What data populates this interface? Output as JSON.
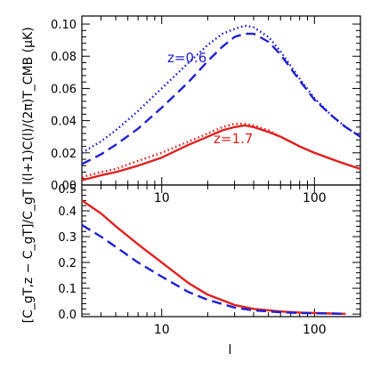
{
  "chart_data": [
    {
      "type": "line",
      "xscale": "log",
      "xlim": [
        3,
        200
      ],
      "ylim": [
        0,
        0.105
      ],
      "ylabel": "l(l+1)C(l)/(2π)T_CMB (μK)",
      "xticks": [
        "10",
        "100"
      ],
      "yticks": [
        "0.00",
        "0.02",
        "0.04",
        "0.06",
        "0.08",
        "0.10"
      ],
      "annotations": [
        {
          "text": "z=0.6",
          "color": "#2020d0"
        },
        {
          "text": "z=1.7",
          "color": "#e02020"
        }
      ],
      "series": [
        {
          "color": "#2020d0",
          "style": "dotted",
          "x": [
            3,
            4,
            5,
            7,
            10,
            15,
            20,
            25,
            30,
            35,
            40,
            50,
            60,
            80,
            100,
            130,
            160,
            200
          ],
          "y": [
            0.02,
            0.027,
            0.034,
            0.046,
            0.06,
            0.076,
            0.087,
            0.094,
            0.097,
            0.099,
            0.098,
            0.092,
            0.083,
            0.066,
            0.054,
            0.043,
            0.036,
            0.03
          ]
        },
        {
          "color": "#2020d0",
          "style": "dashed",
          "x": [
            3,
            4,
            5,
            7,
            10,
            15,
            20,
            25,
            30,
            35,
            40,
            50,
            60,
            80,
            100,
            130,
            160,
            200
          ],
          "y": [
            0.013,
            0.019,
            0.025,
            0.035,
            0.048,
            0.064,
            0.077,
            0.086,
            0.092,
            0.094,
            0.094,
            0.089,
            0.081,
            0.065,
            0.053,
            0.043,
            0.036,
            0.03
          ]
        },
        {
          "color": "#e02020",
          "style": "dotted",
          "x": [
            3,
            4,
            5,
            7,
            10,
            15,
            20,
            25,
            30,
            35,
            40,
            50,
            60,
            80,
            100,
            130,
            160,
            200
          ],
          "y": [
            0.005,
            0.008,
            0.01,
            0.015,
            0.02,
            0.027,
            0.032,
            0.036,
            0.038,
            0.038,
            0.037,
            0.034,
            0.03,
            0.024,
            0.02,
            0.016,
            0.013,
            0.01
          ]
        },
        {
          "color": "#e02020",
          "style": "solid",
          "x": [
            3,
            4,
            5,
            7,
            10,
            15,
            20,
            25,
            30,
            35,
            40,
            50,
            60,
            80,
            100,
            130,
            160,
            200
          ],
          "y": [
            0.003,
            0.006,
            0.008,
            0.012,
            0.017,
            0.025,
            0.03,
            0.034,
            0.036,
            0.037,
            0.036,
            0.033,
            0.03,
            0.024,
            0.02,
            0.016,
            0.013,
            0.01
          ]
        }
      ]
    },
    {
      "type": "line",
      "xscale": "log",
      "xlim": [
        3,
        200
      ],
      "ylim": [
        -0.01,
        0.5
      ],
      "xlabel": "l",
      "ylabel": "[C_gT,z − C_gT]/C_gT",
      "xticks": [
        "10",
        "100"
      ],
      "yticks": [
        "0.0",
        "0.1",
        "0.2",
        "0.3",
        "0.4",
        "0.5"
      ],
      "series": [
        {
          "color": "#e02020",
          "style": "solid",
          "x": [
            3,
            4,
            5,
            7,
            10,
            15,
            20,
            30,
            40,
            60,
            80,
            100,
            130,
            160
          ],
          "y": [
            0.44,
            0.39,
            0.34,
            0.27,
            0.2,
            0.12,
            0.075,
            0.035,
            0.02,
            0.01,
            0.006,
            0.004,
            0.002,
            0.001
          ]
        },
        {
          "color": "#2020d0",
          "style": "dashed",
          "x": [
            3,
            4,
            5,
            7,
            10,
            15,
            20,
            30,
            40,
            60,
            80,
            100,
            130,
            160
          ],
          "y": [
            0.345,
            0.3,
            0.26,
            0.2,
            0.145,
            0.085,
            0.055,
            0.025,
            0.014,
            0.007,
            0.004,
            0.003,
            0.002,
            0.001
          ]
        }
      ]
    }
  ]
}
